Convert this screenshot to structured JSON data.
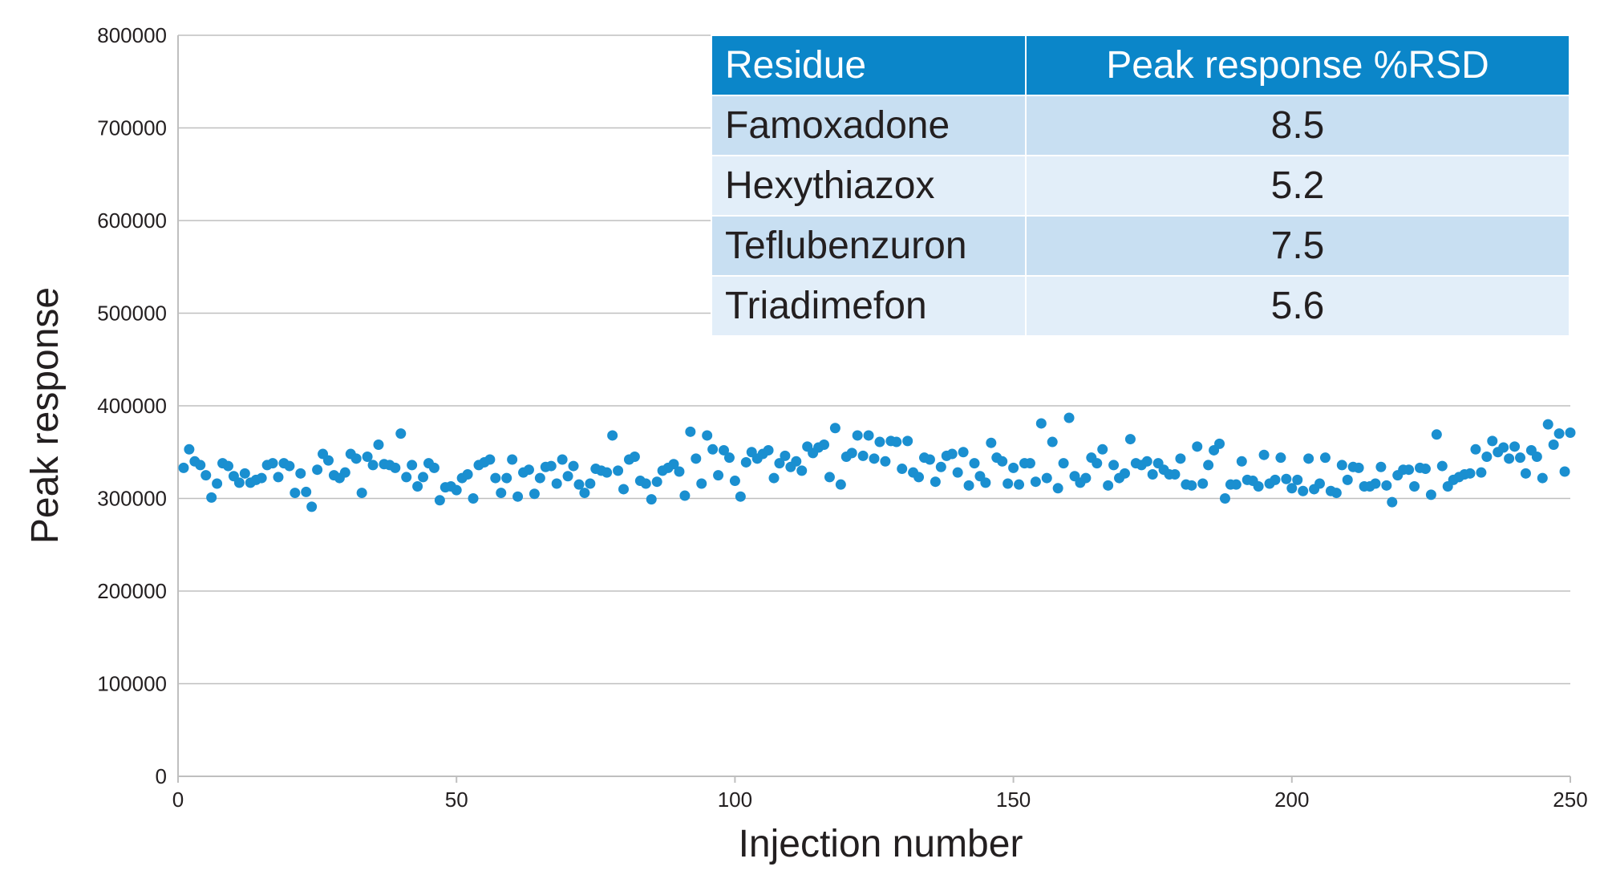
{
  "colors": {
    "points": "#1a8fd0",
    "header_bg": "#0b86c9",
    "row_odd": "#c8dff2",
    "row_even": "#e2eef9"
  },
  "chart_data": {
    "type": "scatter",
    "title": "",
    "xlabel": "Injection number",
    "ylabel": "Peak response",
    "xlim": [
      0,
      250
    ],
    "ylim": [
      0,
      800000
    ],
    "xticks": [
      0,
      50,
      100,
      150,
      200,
      250
    ],
    "yticks": [
      0,
      100000,
      200000,
      300000,
      400000,
      500000,
      600000,
      700000,
      800000
    ],
    "grid": "horizontal",
    "series": [
      {
        "name": "Peak response",
        "x": [
          1,
          2,
          3,
          4,
          5,
          6,
          7,
          8,
          9,
          10,
          11,
          12,
          13,
          14,
          15,
          16,
          17,
          18,
          19,
          20,
          21,
          22,
          23,
          24,
          25,
          26,
          27,
          28,
          29,
          30,
          31,
          32,
          33,
          34,
          35,
          36,
          37,
          38,
          39,
          40,
          41,
          42,
          43,
          44,
          45,
          46,
          47,
          48,
          49,
          50,
          51,
          52,
          53,
          54,
          55,
          56,
          57,
          58,
          59,
          60,
          61,
          62,
          63,
          64,
          65,
          66,
          67,
          68,
          69,
          70,
          71,
          72,
          73,
          74,
          75,
          76,
          77,
          78,
          79,
          80,
          81,
          82,
          83,
          84,
          85,
          86,
          87,
          88,
          89,
          90,
          91,
          92,
          93,
          94,
          95,
          96,
          97,
          98,
          99,
          100,
          101,
          102,
          103,
          104,
          105,
          106,
          107,
          108,
          109,
          110,
          111,
          112,
          113,
          114,
          115,
          116,
          117,
          118,
          119,
          120,
          121,
          122,
          123,
          124,
          125,
          126,
          127,
          128,
          129,
          130,
          131,
          132,
          133,
          134,
          135,
          136,
          137,
          138,
          139,
          140,
          141,
          142,
          143,
          144,
          145,
          146,
          147,
          148,
          149,
          150,
          151,
          152,
          153,
          154,
          155,
          156,
          157,
          158,
          159,
          160,
          161,
          162,
          163,
          164,
          165,
          166,
          167,
          168,
          169,
          170,
          171,
          172,
          173,
          174,
          175,
          176,
          177,
          178,
          179,
          180,
          181,
          182,
          183,
          184,
          185,
          186,
          187,
          188,
          189,
          190,
          191,
          192,
          193,
          194,
          195,
          196,
          197,
          198,
          199,
          200,
          201,
          202,
          203,
          204,
          205,
          206,
          207,
          208,
          209,
          210,
          211,
          212,
          213,
          214,
          215,
          216,
          217,
          218,
          219,
          220,
          221,
          222,
          223,
          224,
          225,
          226,
          227,
          228,
          229,
          230,
          231,
          232,
          233,
          234,
          235,
          236,
          237,
          238,
          239,
          240,
          241,
          242,
          243,
          244,
          245,
          246,
          247,
          248,
          249,
          250
        ],
        "y": [
          333000,
          353000,
          340000,
          336000,
          325000,
          301000,
          316000,
          338000,
          335000,
          324000,
          317000,
          327000,
          317000,
          320000,
          322000,
          336000,
          338000,
          323000,
          338000,
          335000,
          306000,
          327000,
          307000,
          291000,
          331000,
          348000,
          341000,
          325000,
          322000,
          328000,
          348000,
          343000,
          306000,
          345000,
          336000,
          358000,
          337000,
          336000,
          333000,
          370000,
          323000,
          336000,
          313000,
          323000,
          338000,
          333000,
          298000,
          312000,
          313000,
          309000,
          322000,
          326000,
          300000,
          336000,
          339000,
          342000,
          322000,
          306000,
          322000,
          342000,
          302000,
          328000,
          331000,
          305000,
          322000,
          334000,
          335000,
          316000,
          342000,
          324000,
          335000,
          315000,
          306000,
          316000,
          332000,
          330000,
          328000,
          368000,
          330000,
          310000,
          342000,
          345000,
          319000,
          316000,
          299000,
          318000,
          330000,
          333000,
          337000,
          329000,
          303000,
          372000,
          343000,
          316000,
          368000,
          353000,
          325000,
          352000,
          344000,
          319000,
          302000,
          339000,
          350000,
          343000,
          348000,
          352000,
          322000,
          338000,
          346000,
          334000,
          340000,
          330000,
          356000,
          349000,
          355000,
          358000,
          323000,
          376000,
          315000,
          345000,
          349000,
          368000,
          346000,
          368000,
          343000,
          361000,
          340000,
          362000,
          361000,
          332000,
          362000,
          328000,
          323000,
          344000,
          342000,
          318000,
          334000,
          346000,
          348000,
          328000,
          350000,
          314000,
          338000,
          324000,
          317000,
          360000,
          344000,
          340000,
          316000,
          333000,
          315000,
          338000,
          338000,
          318000,
          381000,
          322000,
          361000,
          311000,
          338000,
          387000,
          324000,
          317000,
          322000,
          344000,
          338000,
          353000,
          314000,
          336000,
          322000,
          327000,
          364000,
          338000,
          336000,
          340000,
          326000,
          338000,
          331000,
          326000,
          326000,
          343000,
          315000,
          314000,
          356000,
          316000,
          336000,
          352000,
          359000,
          300000,
          315000,
          315000,
          340000,
          320000,
          319000,
          313000,
          347000,
          316000,
          320000,
          344000,
          321000,
          311000,
          320000,
          308000,
          343000,
          310000,
          316000,
          344000,
          308000,
          306000,
          336000,
          320000,
          334000,
          333000,
          313000,
          313000,
          316000,
          334000,
          314000,
          296000,
          325000,
          331000,
          331000,
          313000,
          333000,
          332000,
          304000,
          369000,
          335000,
          313000,
          320000,
          323000,
          326000,
          327000,
          353000,
          328000,
          345000,
          362000,
          350000,
          355000,
          343000,
          356000,
          344000,
          327000,
          352000,
          345000,
          322000,
          380000,
          358000,
          370000,
          329000,
          371000
        ]
      }
    ]
  },
  "table": {
    "headers": [
      "Residue",
      "Peak response %RSD"
    ],
    "rows": [
      {
        "residue": "Famoxadone",
        "rsd": "8.5"
      },
      {
        "residue": "Hexythiazox",
        "rsd": "5.2"
      },
      {
        "residue": "Teflubenzuron",
        "rsd": "7.5"
      },
      {
        "residue": "Triadimefon",
        "rsd": "5.6"
      }
    ]
  }
}
